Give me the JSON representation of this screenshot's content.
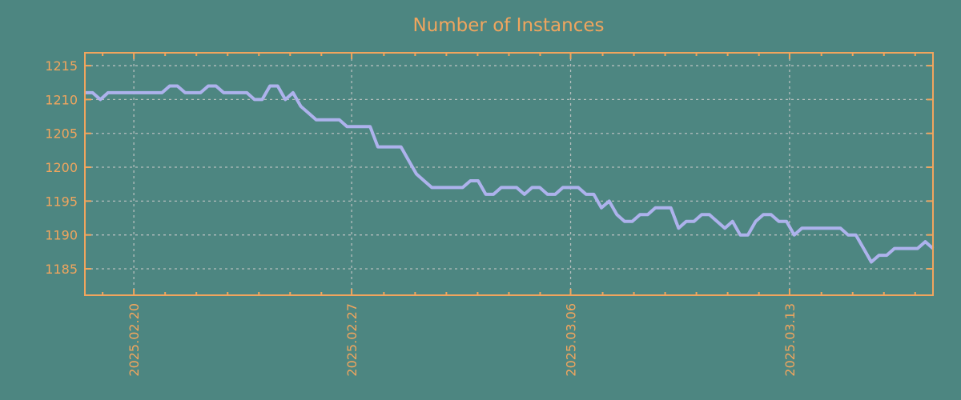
{
  "chart_data": {
    "type": "line",
    "title": "Number of Instances",
    "xlabel": "",
    "ylabel": "",
    "legend": false,
    "grid": true,
    "grid_style": "dashed",
    "background_color": "#4d8681",
    "axis_color": "#f0a55e",
    "grid_color": "#c8c8c8",
    "line_color": "#adb2ec",
    "yticks": [
      1185,
      1190,
      1195,
      1200,
      1205,
      1210,
      1215
    ],
    "ylim": [
      1181.1,
      1216.9
    ],
    "xticks": [
      {
        "label": "2025.02.20",
        "pos": 6.35
      },
      {
        "label": "2025.02.27",
        "pos": 34.6
      },
      {
        "label": "2025.03.06",
        "pos": 63.0
      },
      {
        "label": "2025.03.13",
        "pos": 91.4
      }
    ],
    "minor_xticks": {
      "start": 2.3,
      "step": 4.0535,
      "max": 110
    },
    "x_index_range": [
      0,
      110
    ],
    "series": [
      {
        "name": "instances",
        "values": [
          1211,
          1211,
          1210,
          1211,
          1211,
          1211,
          1211,
          1211,
          1211,
          1211,
          1211,
          1212,
          1212,
          1211,
          1211,
          1211,
          1212,
          1212,
          1211,
          1211,
          1211,
          1211,
          1210,
          1210,
          1212,
          1212,
          1210,
          1211,
          1209,
          1208,
          1207,
          1207,
          1207,
          1207,
          1206,
          1206,
          1206,
          1206,
          1203,
          1203,
          1203,
          1203,
          1201,
          1199,
          1198,
          1197,
          1197,
          1197,
          1197,
          1197,
          1198,
          1198,
          1196,
          1196,
          1197,
          1197,
          1197,
          1196,
          1197,
          1197,
          1196,
          1196,
          1197,
          1197,
          1197,
          1196,
          1196,
          1194,
          1195,
          1193,
          1192,
          1192,
          1193,
          1193,
          1194,
          1194,
          1194,
          1191,
          1192,
          1192,
          1193,
          1193,
          1192,
          1191,
          1192,
          1190,
          1190,
          1192,
          1193,
          1193,
          1192,
          1192,
          1190,
          1191,
          1191,
          1191,
          1191,
          1191,
          1191,
          1190,
          1190,
          1188,
          1186,
          1187,
          1187,
          1188,
          1188,
          1188,
          1188,
          1189,
          1188
        ]
      }
    ]
  }
}
